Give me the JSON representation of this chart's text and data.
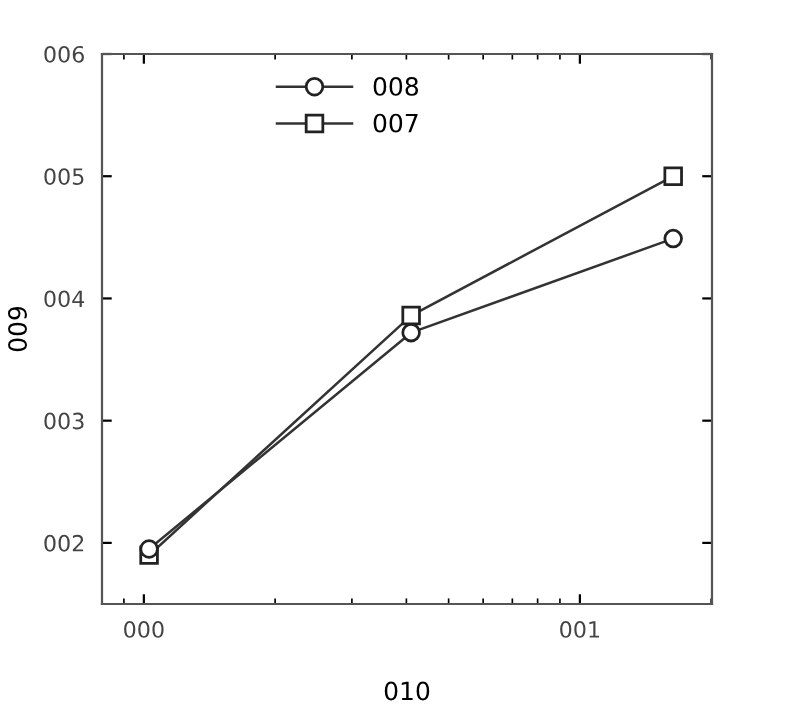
{
  "chart_data": {
    "type": "line",
    "xlabel": "010",
    "ylabel": "009",
    "x": [
      0.012,
      0.613,
      1.214
    ],
    "series": [
      {
        "name": "008",
        "color": "#333333",
        "marker": "circle",
        "values": [
          1.95,
          3.72,
          4.49
        ]
      },
      {
        "name": "007",
        "color": "#333333",
        "marker": "square",
        "values": [
          1.9,
          3.86,
          5.0
        ]
      }
    ],
    "xlim": [
      -0.096,
      1.303
    ],
    "xticks": [
      {
        "value": 0,
        "label": "000"
      },
      {
        "value": 1,
        "label": "001"
      }
    ],
    "ylim": [
      1.5,
      6
    ],
    "yticks": [
      {
        "value": 2,
        "label": "002"
      },
      {
        "value": 3,
        "label": "003"
      },
      {
        "value": 4,
        "label": "004"
      },
      {
        "value": 5,
        "label": "005"
      },
      {
        "value": 6,
        "label": "006"
      }
    ],
    "grid": false,
    "legend": "top left",
    "line_style": "solid"
  }
}
